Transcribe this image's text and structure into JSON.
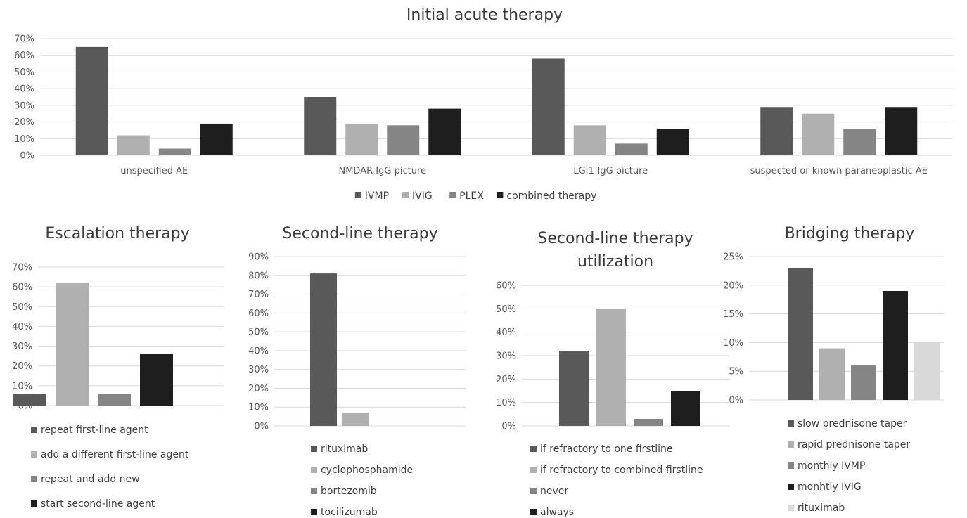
{
  "chart_data": [
    {
      "id": "c1",
      "type": "bar",
      "title": "Initial acute therapy",
      "categories": [
        "unspecified AE",
        "NMDAR-IgG picture",
        "LGI1-IgG picture",
        "suspected or known paraneoplastic AE"
      ],
      "series": [
        {
          "name": "IVMP",
          "color": "#595959",
          "values": [
            65,
            35,
            58,
            29
          ]
        },
        {
          "name": "IVIG",
          "color": "#b0b0b0",
          "values": [
            12,
            19,
            18,
            25
          ]
        },
        {
          "name": "PLEX",
          "color": "#858585",
          "values": [
            4,
            18,
            7,
            16
          ]
        },
        {
          "name": "combined therapy",
          "color": "#1e1e1e",
          "values": [
            19,
            28,
            16,
            29
          ]
        }
      ],
      "ylim": [
        0,
        70
      ],
      "yticks": [
        "0%",
        "10%",
        "20%",
        "30%",
        "40%",
        "50%",
        "60%",
        "70%"
      ],
      "grid": true,
      "legend": "bottom"
    },
    {
      "id": "c2",
      "type": "bar",
      "title": "Escalation therapy",
      "series": [
        {
          "name": "repeat first-line agent",
          "color": "#595959",
          "value": 6
        },
        {
          "name": "add a different first-line agent",
          "color": "#b0b0b0",
          "value": 62
        },
        {
          "name": "repeat and add new",
          "color": "#858585",
          "value": 6
        },
        {
          "name": "start second-line agent",
          "color": "#1e1e1e",
          "value": 26
        }
      ],
      "ylim": [
        0,
        70
      ],
      "yticks": [
        "0%",
        "10%",
        "20%",
        "30%",
        "40%",
        "50%",
        "60%",
        "70%"
      ],
      "grid": true,
      "legend": "bottom"
    },
    {
      "id": "c3",
      "type": "bar",
      "title": "Second-line therapy",
      "series": [
        {
          "name": "rituximab",
          "color": "#595959",
          "value": 81
        },
        {
          "name": "cyclophosphamide",
          "color": "#b0b0b0",
          "value": 7
        },
        {
          "name": "bortezomib",
          "color": "#858585",
          "value": 0
        },
        {
          "name": "tocilizumab",
          "color": "#1e1e1e",
          "value": 0
        }
      ],
      "ylim": [
        0,
        90
      ],
      "yticks": [
        "0%",
        "10%",
        "20%",
        "30%",
        "40%",
        "50%",
        "60%",
        "70%",
        "80%",
        "90%"
      ],
      "grid": true,
      "legend": "bottom"
    },
    {
      "id": "c4",
      "type": "bar",
      "title": [
        "Second-line therapy",
        "utilization"
      ],
      "series": [
        {
          "name": "if refractory to one firstline",
          "color": "#595959",
          "value": 32
        },
        {
          "name": "if refractory to combined firstline",
          "color": "#b0b0b0",
          "value": 50
        },
        {
          "name": "never",
          "color": "#858585",
          "value": 3
        },
        {
          "name": "always",
          "color": "#1e1e1e",
          "value": 15
        }
      ],
      "ylim": [
        0,
        60
      ],
      "yticks": [
        "0%",
        "10%",
        "20%",
        "30%",
        "40%",
        "50%",
        "60%"
      ],
      "grid": true,
      "legend": "bottom"
    },
    {
      "id": "c5",
      "type": "bar",
      "title": "Bridging therapy",
      "series": [
        {
          "name": "slow prednisone taper",
          "color": "#595959",
          "value": 23
        },
        {
          "name": "rapid prednisone taper",
          "color": "#b0b0b0",
          "value": 9
        },
        {
          "name": "monthly IVMP",
          "color": "#858585",
          "value": 6
        },
        {
          "name": "monhtly IVIG",
          "color": "#1e1e1e",
          "value": 19
        },
        {
          "name": "rituximab",
          "color": "#d9d9d9",
          "value": 10
        }
      ],
      "ylim": [
        0,
        25
      ],
      "yticks": [
        "0%",
        "5%",
        "10%",
        "15%",
        "20%",
        "25%"
      ],
      "grid": true,
      "legend": "bottom"
    }
  ]
}
